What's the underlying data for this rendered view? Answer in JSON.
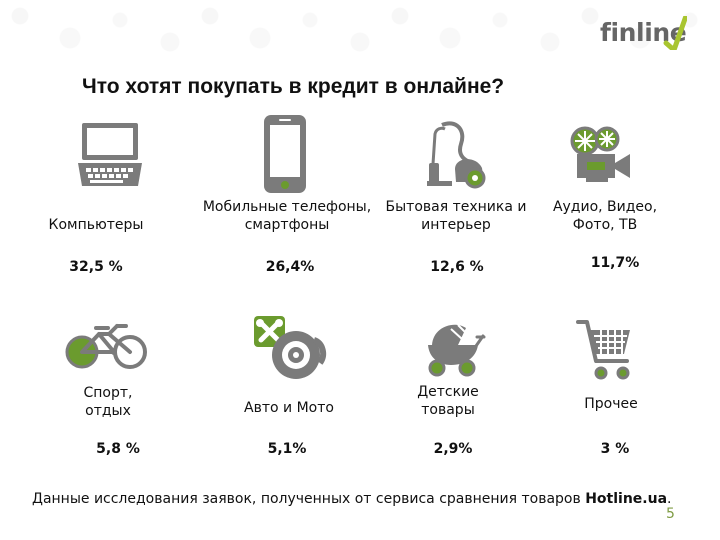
{
  "header": {
    "logo": "finline",
    "title": "Что хотят покупать в кредит в онлайне?"
  },
  "categories": [
    {
      "label": "Компьютеры",
      "value": "32,5 %",
      "icon": "laptop-icon"
    },
    {
      "label": "Мобильные телефоны,\nсмартфоны",
      "value": "26,4%",
      "icon": "smartphone-icon"
    },
    {
      "label": "Бытовая техника и\nинтерьер",
      "value": "12,6 %",
      "icon": "vacuum-icon"
    },
    {
      "label": "Аудио, Видео,\nФото, ТВ",
      "value": "11,7%",
      "icon": "camera-icon"
    },
    {
      "label": "Спорт,\nотдых",
      "value": "5,8 %",
      "icon": "bicycle-icon"
    },
    {
      "label": "Авто и Мото",
      "value": "5,1%",
      "icon": "wrench-icon"
    },
    {
      "label": "Детские\nтовары",
      "value": "2,9%",
      "icon": "stroller-icon"
    },
    {
      "label": "Прочее",
      "value": "3 %",
      "icon": "cart-icon"
    }
  ],
  "footer": {
    "text_prefix": "Данные исследования заявок, полученных от сервиса сравнения товаров ",
    "text_bold": "Hotline.ua",
    "text_suffix": ".",
    "page_number": "5"
  },
  "colors": {
    "icon_dark": "#7b7b7b",
    "accent_green": "#6b9b2e",
    "light_green": "#8bbb45"
  },
  "chart_data": {
    "type": "table",
    "title": "Что хотят покупать в кредит в онлайне?",
    "categories": [
      "Компьютеры",
      "Мобильные телефоны, смартфоны",
      "Бытовая техника и интерьер",
      "Аудио, Видео, Фото, ТВ",
      "Спорт, отдых",
      "Авто и Мото",
      "Детские товары",
      "Прочее"
    ],
    "values": [
      32.5,
      26.4,
      12.6,
      11.7,
      5.8,
      5.1,
      2.9,
      3
    ],
    "unit": "%"
  }
}
